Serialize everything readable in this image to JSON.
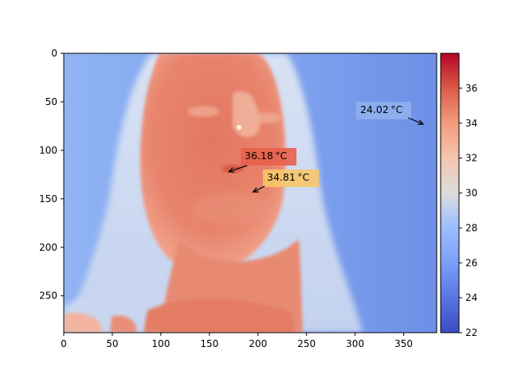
{
  "image": {
    "description_type": "thermal",
    "x_ticks": [
      "0",
      "50",
      "100",
      "150",
      "200",
      "250",
      "300",
      "350"
    ],
    "y_ticks": [
      "0",
      "50",
      "100",
      "150",
      "200",
      "250"
    ],
    "xlim": [
      0,
      384
    ],
    "ylim": [
      288,
      0
    ]
  },
  "colorbar": {
    "ticks": [
      "22",
      "24",
      "26",
      "28",
      "30",
      "32",
      "34",
      "36"
    ],
    "range": [
      22,
      38
    ],
    "colormap": "coolwarm",
    "colors": {
      "low": "#3b4cc0",
      "mid": "#dddddd",
      "high": "#b40426"
    }
  },
  "annotations": [
    {
      "label": "36.18 °C",
      "box_color": "#e8604a",
      "point": [
        170,
        122
      ]
    },
    {
      "label": "34.81 °C",
      "box_color": "#f7c76a",
      "point": [
        195,
        143
      ]
    },
    {
      "label": "24.02 °C",
      "box_color": "#8fb0f0",
      "point": [
        370,
        73
      ]
    }
  ]
}
